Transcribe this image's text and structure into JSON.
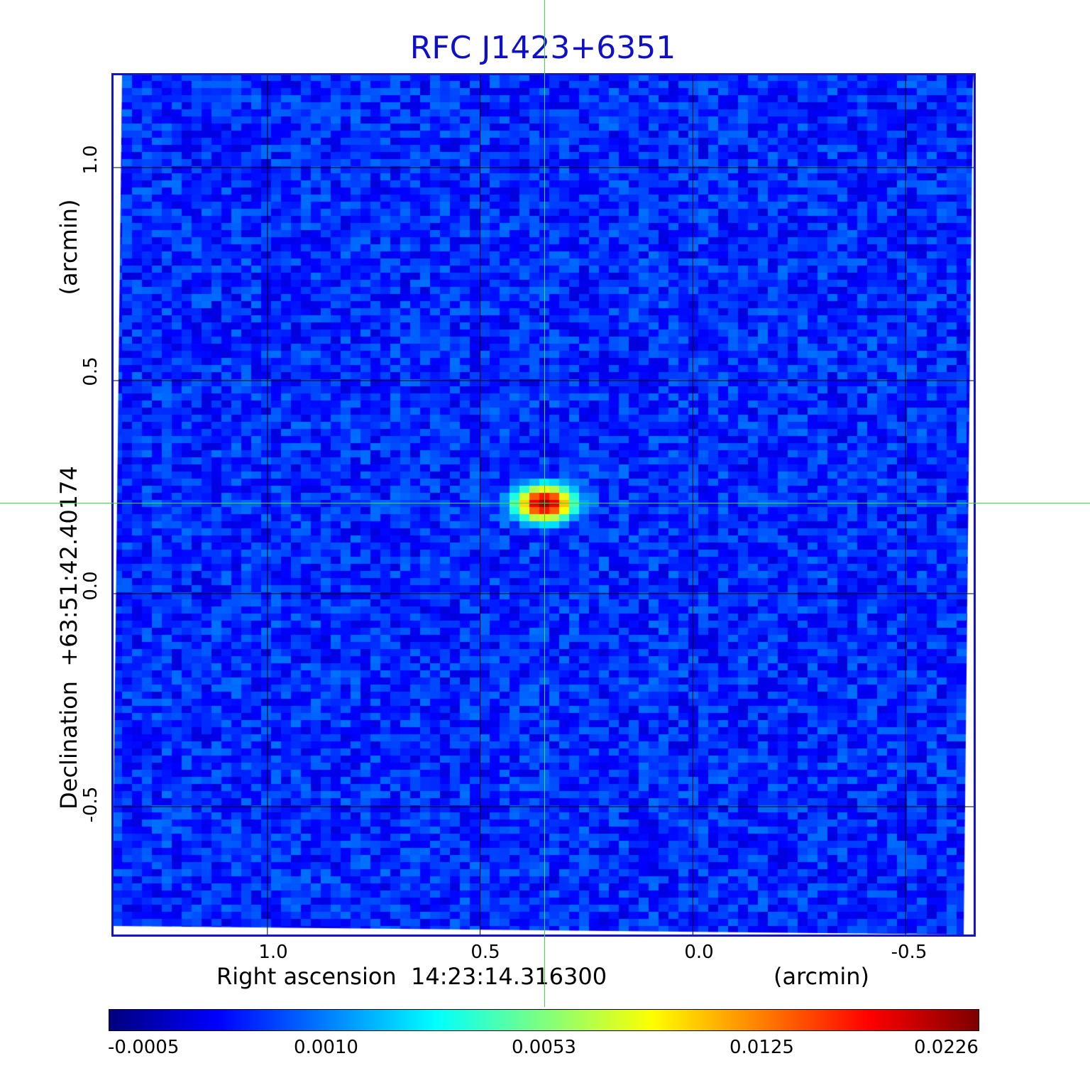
{
  "chart_data": {
    "type": "heatmap",
    "title": "RFC J1423+6351",
    "xlabel": "Right ascension  14:23:14.316300",
    "xlabel_unit": "(arcmin)",
    "ylabel": "Declination  +63:51:42.40174",
    "ylabel_unit": "(arcmin)",
    "x_ticks": [
      "1.0",
      "0.5",
      "0.0",
      "-0.5"
    ],
    "x_tick_values": [
      1.0,
      0.5,
      0.0,
      -0.5
    ],
    "y_ticks": [
      "1.0",
      "0.5",
      "0.0",
      "-0.5"
    ],
    "y_tick_values": [
      1.0,
      0.5,
      0.0,
      -0.5
    ],
    "xlim": [
      1.365,
      -0.66
    ],
    "ylim": [
      -0.8,
      1.22
    ],
    "grid": true,
    "colormap": "jet",
    "colorbar_ticks": [
      "-0.0005",
      "0.0010",
      "0.0053",
      "0.0125",
      "0.0226"
    ],
    "colorbar_range": [
      -0.0005,
      0.0226
    ],
    "background_level": 0.0005,
    "source": {
      "peak": 0.0226,
      "x": 0.348,
      "y": 0.212,
      "fwhm_x": 0.09,
      "fwhm_y": 0.055
    },
    "crosshair": {
      "x": 0.348,
      "y": 0.212
    }
  },
  "colors": {
    "title": "#0f0fc8",
    "frame": "#1414c8",
    "grid": "#000000",
    "crosshair": "#3cdc3c"
  }
}
